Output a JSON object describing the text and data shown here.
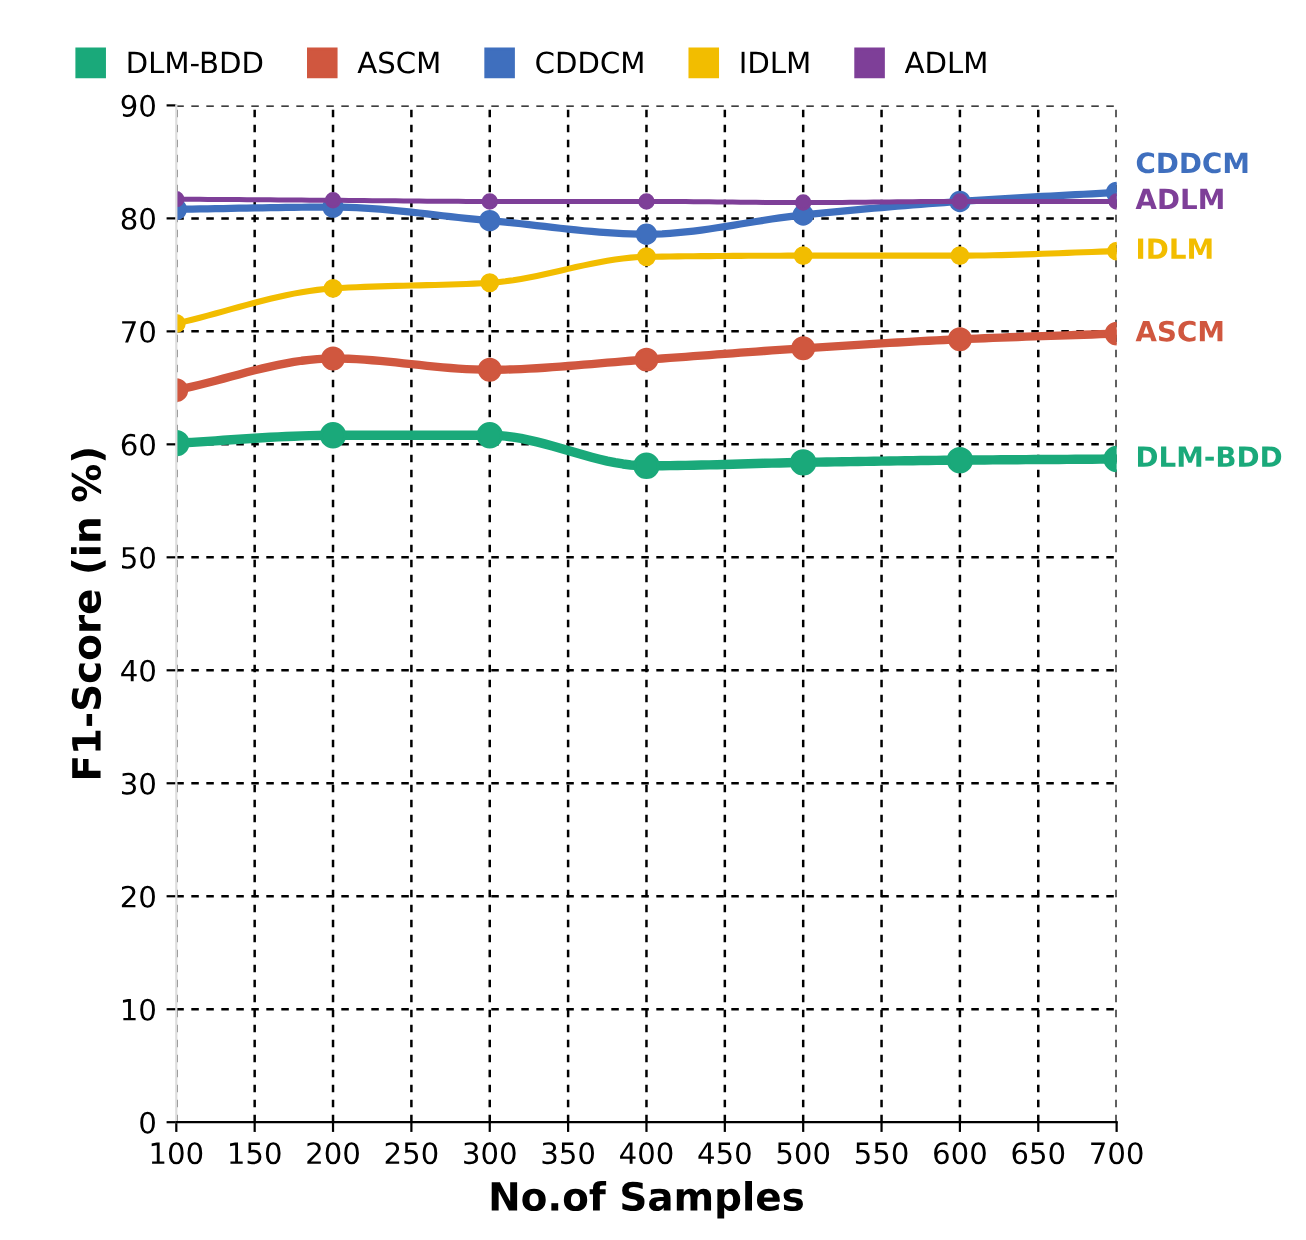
{
  "chart_data": {
    "type": "line",
    "xlabel": "No.of Samples",
    "ylabel": "F1-Score (in %)",
    "x": [
      100,
      200,
      300,
      400,
      500,
      600,
      700
    ],
    "series": [
      {
        "name": "DLM-BDD",
        "color": "#1aa97a",
        "values": [
          60.1,
          60.8,
          60.8,
          58.1,
          58.4,
          58.6,
          58.7
        ]
      },
      {
        "name": "ASCM",
        "color": "#d0573f",
        "values": [
          64.8,
          67.6,
          66.6,
          67.5,
          68.5,
          69.3,
          69.8
        ]
      },
      {
        "name": "CDDCM",
        "color": "#3f6fbe",
        "values": [
          80.8,
          81.0,
          79.8,
          78.6,
          80.3,
          81.5,
          82.3
        ]
      },
      {
        "name": "IDLM",
        "color": "#f2bd00",
        "values": [
          70.7,
          73.8,
          74.3,
          76.6,
          76.7,
          76.7,
          77.1
        ]
      },
      {
        "name": "ADLM",
        "color": "#7e3f98",
        "values": [
          81.7,
          81.6,
          81.5,
          81.5,
          81.4,
          81.5,
          81.5
        ]
      }
    ],
    "xlim": [
      100,
      700
    ],
    "xticks": [
      100,
      150,
      200,
      250,
      300,
      350,
      400,
      450,
      500,
      550,
      600,
      650,
      700
    ],
    "ylim": [
      0,
      90
    ],
    "yticks": [
      0,
      10,
      20,
      30,
      40,
      50,
      60,
      70,
      80,
      90
    ],
    "grid": true,
    "legend": "top",
    "marker": "circle",
    "line_style": "solid"
  }
}
